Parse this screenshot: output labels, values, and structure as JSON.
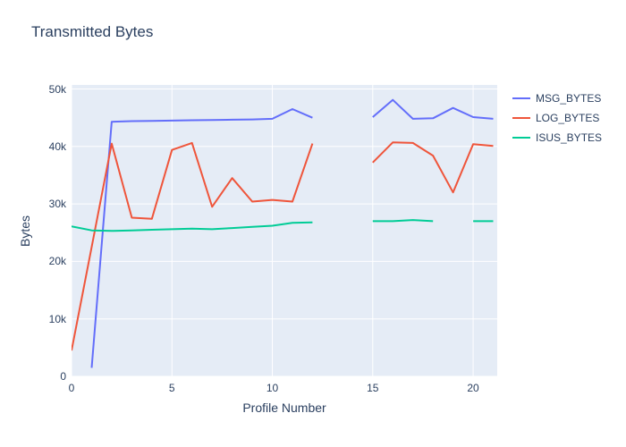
{
  "chart_data": {
    "type": "line",
    "title": "Transmitted Bytes",
    "xlabel": "Profile Number",
    "ylabel": "Bytes",
    "x_range": [
      0,
      21.2
    ],
    "y_range": [
      0,
      50700
    ],
    "x_ticks": [
      0,
      5,
      10,
      15,
      20
    ],
    "x_tick_labels": [
      "0",
      "5",
      "10",
      "15",
      "20"
    ],
    "y_ticks": [
      0,
      10000,
      20000,
      30000,
      40000,
      50000
    ],
    "y_tick_labels": [
      "0",
      "10k",
      "20k",
      "30k",
      "40k",
      "50k"
    ],
    "grid": true,
    "legend_position": "right-outside-top",
    "plot_bg_color": "#e5ecf6",
    "grid_color": "#ffffff",
    "text_color": "#2a3f5f",
    "series": [
      {
        "name": "MSG_BYTES",
        "color": "#636efa",
        "points": [
          [
            1,
            1500
          ],
          [
            2,
            44300
          ],
          [
            3,
            44400
          ],
          [
            4,
            44450
          ],
          [
            5,
            44500
          ],
          [
            6,
            44550
          ],
          [
            7,
            44600
          ],
          [
            8,
            44650
          ],
          [
            9,
            44700
          ],
          [
            10,
            44800
          ],
          [
            11,
            46500
          ],
          [
            12,
            45000
          ],
          null,
          [
            15,
            45100
          ],
          [
            16,
            48100
          ],
          [
            17,
            44800
          ],
          [
            18,
            44900
          ],
          [
            19,
            46700
          ],
          [
            20,
            45100
          ],
          [
            21,
            44800
          ]
        ]
      },
      {
        "name": "LOG_BYTES",
        "color": "#ef553b",
        "points": [
          [
            0,
            4500
          ],
          [
            1,
            22500
          ],
          [
            2,
            40500
          ],
          [
            3,
            27600
          ],
          [
            4,
            27400
          ],
          [
            5,
            39400
          ],
          [
            6,
            40600
          ],
          [
            7,
            29500
          ],
          [
            8,
            34500
          ],
          [
            9,
            30400
          ],
          [
            10,
            30700
          ],
          [
            11,
            30400
          ],
          [
            12,
            40500
          ],
          null,
          [
            15,
            37200
          ],
          [
            16,
            40700
          ],
          [
            17,
            40600
          ],
          [
            18,
            38400
          ],
          [
            19,
            32000
          ],
          [
            20,
            40400
          ],
          [
            21,
            40100
          ]
        ]
      },
      {
        "name": "ISUS_BYTES",
        "color": "#00cc96",
        "points": [
          [
            0,
            26100
          ],
          [
            1,
            25400
          ],
          [
            2,
            25300
          ],
          [
            3,
            25400
          ],
          [
            4,
            25500
          ],
          [
            5,
            25600
          ],
          [
            6,
            25700
          ],
          [
            7,
            25600
          ],
          [
            8,
            25800
          ],
          [
            9,
            26000
          ],
          [
            10,
            26200
          ],
          [
            11,
            26700
          ],
          [
            12,
            26800
          ],
          null,
          [
            15,
            27000
          ],
          [
            16,
            27000
          ],
          [
            17,
            27200
          ],
          [
            18,
            27000
          ],
          null,
          [
            20,
            27000
          ],
          [
            21,
            27000
          ]
        ]
      }
    ]
  }
}
